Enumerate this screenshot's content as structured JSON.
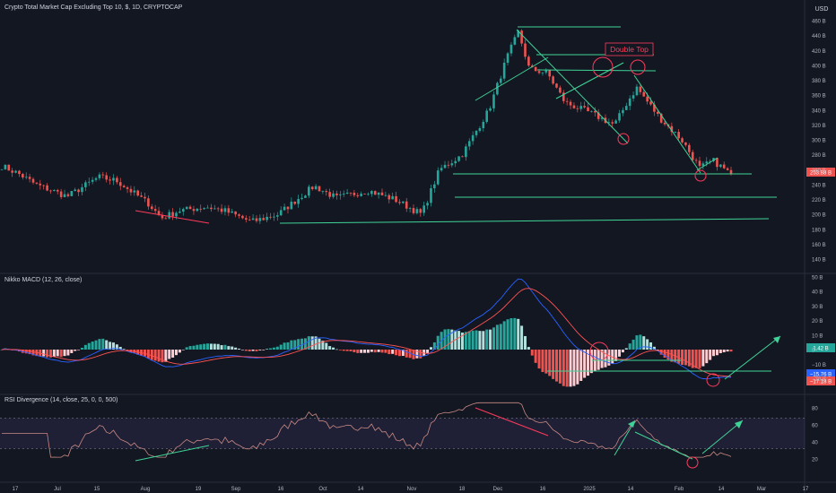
{
  "header": {
    "main_title": "Crypto Total Market Cap Excluding Top 10, $, 1D, CRYPTOCAP",
    "currency": "USD",
    "macd_title": "Nikko MACD (12, 26, close)",
    "rsi_title": "RSI Divergence (14, close, 25, 0, 0, 500)"
  },
  "annotations": {
    "double_top": "Double Top",
    "price_tag": "253.88 B",
    "macd_tag_1": "1.42 B",
    "macd_tag_2": "−15.76 B",
    "macd_tag_3": "−17.18 B"
  },
  "colors": {
    "background": "#131722",
    "up": "#26a69a",
    "down": "#ef5350",
    "annotation_green": "#3fd497",
    "annotation_red": "#ff3b5c",
    "macd_line": "#2962ff",
    "signal_line": "#ff5252",
    "rsi_line": "#c98a84",
    "rsi_band": "#7e57c2"
  },
  "chart_data": [
    {
      "type": "candlestick",
      "title": "Crypto Total Market Cap Excluding Top 10, $, 1D, CRYPTOCAP",
      "unit": "USD",
      "y_ticks": [
        "460 B",
        "440 B",
        "420 B",
        "400 B",
        "380 B",
        "360 B",
        "340 B",
        "320 B",
        "300 B",
        "280 B",
        "260 B",
        "240 B",
        "220 B",
        "200 B",
        "180 B",
        "160 B",
        "140 B"
      ],
      "x_ticks": [
        "17",
        "Jul",
        "15",
        "Aug",
        "19",
        "Sep",
        "16",
        "Oct",
        "14",
        "Nov",
        "18",
        "Dec",
        "16",
        "2025",
        "14",
        "Feb",
        "14",
        "Mar",
        "17"
      ],
      "ylim": [
        130,
        465
      ],
      "last_price": 253.88,
      "close_series_approx": [
        [
          0,
          266
        ],
        [
          20,
          255
        ],
        [
          40,
          240
        ],
        [
          75,
          224
        ],
        [
          110,
          250
        ],
        [
          130,
          245
        ],
        [
          165,
          215
        ],
        [
          180,
          195
        ],
        [
          200,
          205
        ],
        [
          230,
          210
        ],
        [
          250,
          205
        ],
        [
          280,
          190
        ],
        [
          310,
          200
        ],
        [
          350,
          238
        ],
        [
          375,
          222
        ],
        [
          410,
          232
        ],
        [
          440,
          220
        ],
        [
          470,
          200
        ],
        [
          490,
          260
        ],
        [
          515,
          280
        ],
        [
          545,
          340
        ],
        [
          565,
          410
        ],
        [
          578,
          445
        ],
        [
          590,
          395
        ],
        [
          610,
          390
        ],
        [
          630,
          350
        ],
        [
          660,
          335
        ],
        [
          685,
          320
        ],
        [
          700,
          352
        ],
        [
          710,
          370
        ],
        [
          735,
          330
        ],
        [
          760,
          300
        ],
        [
          780,
          262
        ],
        [
          795,
          272
        ],
        [
          815,
          253.88
        ]
      ]
    },
    {
      "type": "macd",
      "title": "Nikko MACD (12, 26, close)",
      "y_ticks": [
        "50 B",
        "40 B",
        "30 B",
        "20 B",
        "10 B",
        "0",
        "−10 B",
        "−20 B"
      ],
      "ylim": [
        -25,
        52
      ],
      "last_values": {
        "histogram": 1.42,
        "macd": -15.76,
        "signal": -17.18
      }
    },
    {
      "type": "line",
      "title": "RSI Divergence (14, close, 25, 0, 0, 500)",
      "y_ticks": [
        "80",
        "60",
        "40",
        "20"
      ],
      "ylim": [
        18,
        88
      ],
      "band": [
        32,
        68
      ]
    }
  ]
}
